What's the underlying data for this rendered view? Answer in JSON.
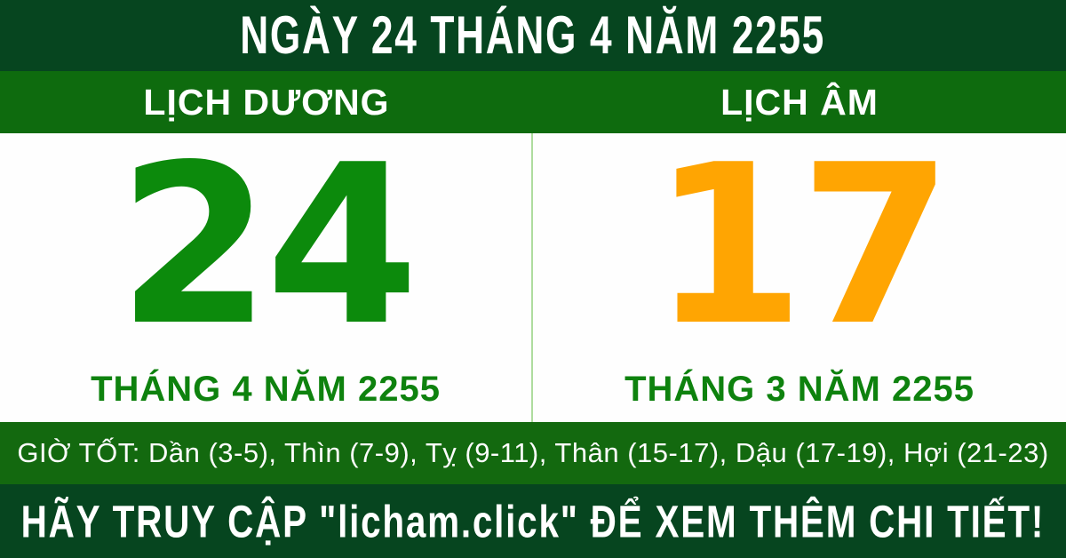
{
  "header": {
    "title": "NGÀY 24 THÁNG 4 NĂM 2255"
  },
  "calendar": {
    "solar": {
      "label": "LỊCH DƯƠNG",
      "day": "24",
      "month_year": "THÁNG 4 NĂM 2255"
    },
    "lunar": {
      "label": "LỊCH ÂM",
      "day": "17",
      "month_year": "THÁNG 3 NĂM 2255"
    }
  },
  "good_hours": {
    "text": "GIỜ TỐT: Dần (3-5), Thìn (7-9), Tỵ (9-11), Thân (15-17), Dậu (17-19), Hợi (21-23)"
  },
  "footer": {
    "cta": "HÃY TRUY CẬP \"licham.click\" ĐỂ XEM THÊM CHI TIẾT!"
  },
  "colors": {
    "dark_green": "#06451F",
    "band_green": "#0E6B0E",
    "hours_green": "#13690F",
    "day_green": "#0C8A0C",
    "label_green": "#0E820E",
    "lunar_orange": "#FFA502",
    "divider_green": "#AEDC9E",
    "panel_white": "#FEFEFE"
  }
}
